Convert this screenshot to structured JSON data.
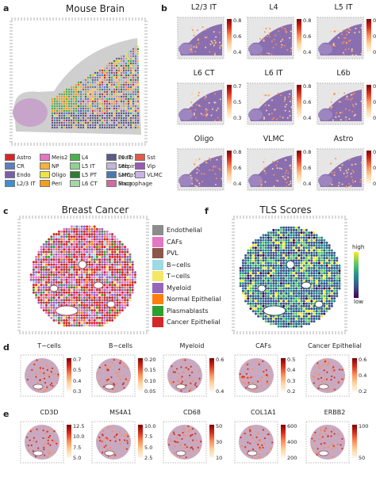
{
  "panels": {
    "a": {
      "label": "a",
      "title": "Mouse Brain"
    },
    "b": {
      "label": "b"
    },
    "c": {
      "label": "c",
      "title": "Breast Cancer"
    },
    "f": {
      "label": "f",
      "title": "TLS Scores",
      "cbar_high": "high",
      "cbar_low": "low"
    },
    "d": {
      "label": "d"
    },
    "e": {
      "label": "e"
    }
  },
  "brain_legend": [
    {
      "name": "Astro",
      "color": "#d62728"
    },
    {
      "name": "CR",
      "color": "#5b7fbf"
    },
    {
      "name": "Endo",
      "color": "#7a5ea8"
    },
    {
      "name": "L2/3 IT",
      "color": "#3f8fd0"
    },
    {
      "name": "Meis2",
      "color": "#e377c2"
    },
    {
      "name": "NP",
      "color": "#f5b040"
    },
    {
      "name": "Oligo",
      "color": "#f0e442"
    },
    {
      "name": "Peri",
      "color": "#f0a020"
    },
    {
      "name": "L4",
      "color": "#4caf50"
    },
    {
      "name": "L5 IT",
      "color": "#8fd18f"
    },
    {
      "name": "L5 PT",
      "color": "#2e7d32"
    },
    {
      "name": "L6 CT",
      "color": "#a5d6a7"
    },
    {
      "name": "Pvalb",
      "color": "#ffd54f"
    },
    {
      "name": "Serpinf1",
      "color": "#ffb74d"
    },
    {
      "name": "SMC",
      "color": "#ff8a65"
    },
    {
      "name": "Sncg",
      "color": "#bcaaa4"
    },
    {
      "name": "L6 IT",
      "color": "#5a5a8a"
    },
    {
      "name": "L6b",
      "color": "#c1b7d8"
    },
    {
      "name": "Lamp5",
      "color": "#4a78b5"
    },
    {
      "name": "Macrophage",
      "color": "#d36aa0"
    },
    {
      "name": "Sst",
      "color": "#e35a4a"
    },
    {
      "name": "Vip",
      "color": "#9b59b6"
    },
    {
      "name": "VLMC",
      "color": "#c9b3e6"
    }
  ],
  "b_maps": [
    {
      "title": "L2/3 IT",
      "ticks": [
        "0.8",
        "0.6",
        "0.4"
      ]
    },
    {
      "title": "L4",
      "ticks": [
        "0.8",
        "0.6",
        "0.4"
      ]
    },
    {
      "title": "L5 IT",
      "ticks": [
        "0.6",
        "0.4",
        "0.2"
      ]
    },
    {
      "title": "L6 CT",
      "ticks": [
        "0.7",
        "0.5",
        "0.3"
      ]
    },
    {
      "title": "L6 IT",
      "ticks": [
        "0.8",
        "0.6",
        "0.4"
      ]
    },
    {
      "title": "L6b",
      "ticks": [
        "0.8",
        "0.6",
        "0.4"
      ]
    },
    {
      "title": "Oligo",
      "ticks": [
        "0.8",
        "0.6",
        "0.4"
      ]
    },
    {
      "title": "VLMC",
      "ticks": [
        "0.8",
        "0.6",
        "0.4"
      ]
    },
    {
      "title": "Astro",
      "ticks": [
        "0.6",
        "0.4",
        "0.2"
      ]
    }
  ],
  "bc_legend": [
    {
      "name": "Endothelial",
      "color": "#8c8c8c"
    },
    {
      "name": "CAFs",
      "color": "#e377c2"
    },
    {
      "name": "PVL",
      "color": "#8c564b"
    },
    {
      "name": "B−cells",
      "color": "#9edae5"
    },
    {
      "name": "T−cells",
      "color": "#f5e663"
    },
    {
      "name": "Myeloid",
      "color": "#9467bd"
    },
    {
      "name": "Normal Epithelial",
      "color": "#ff7f0e"
    },
    {
      "name": "Plasmablasts",
      "color": "#2ca02c"
    },
    {
      "name": "Cancer Epithelial",
      "color": "#d62728"
    }
  ],
  "d_maps": [
    {
      "title": "T−cells",
      "ticks": [
        "0.7",
        "0.5",
        "0.4",
        "0.3"
      ]
    },
    {
      "title": "B−cells",
      "ticks": [
        "0.20",
        "0.15",
        "0.10",
        "0.05"
      ]
    },
    {
      "title": "Myeloid",
      "ticks": [
        "0.6",
        "0.4"
      ]
    },
    {
      "title": "CAFs",
      "ticks": [
        "0.5",
        "0.4",
        "0.3",
        "0.2"
      ]
    },
    {
      "title": "Cancer Epithelial",
      "ticks": [
        "0.6",
        "0.4",
        "0.2"
      ]
    }
  ],
  "e_maps": [
    {
      "title": "CD3D",
      "ticks": [
        "12.5",
        "10.0",
        "7.5",
        "5.0"
      ]
    },
    {
      "title": "MS4A1",
      "ticks": [
        "10.0",
        "7.5",
        "5.0",
        "2.5"
      ]
    },
    {
      "title": "CD68",
      "ticks": [
        "50",
        "30",
        "10"
      ]
    },
    {
      "title": "COL1A1",
      "ticks": [
        "600",
        "400",
        "200"
      ]
    },
    {
      "title": "ERBB2",
      "ticks": [
        "100",
        "50"
      ]
    }
  ]
}
